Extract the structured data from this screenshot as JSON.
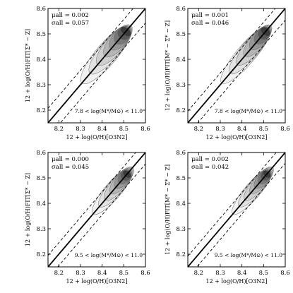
{
  "chart_data": [
    {
      "type": "contour",
      "xlabel": "12 + log(O/H)[O3N2]",
      "ylabel": "12 + log(O/H)FIT[Σ* − Z]",
      "xlim": [
        8.15,
        8.6
      ],
      "ylim": [
        8.15,
        8.6
      ],
      "xticks": [
        "8.2",
        "8.3",
        "8.4",
        "8.5",
        "8.6"
      ],
      "yticks": [
        "8.2",
        "8.3",
        "8.4",
        "8.5",
        "8.6"
      ],
      "stats": [
        "μall = 0.002",
        "σall = 0.057"
      ],
      "annotation": "7.8 < log(M*/M⊙) < 11.0",
      "dashed_offset": 0.057,
      "density": {
        "cx": 8.42,
        "cy": 8.42,
        "rotation_deg": 45,
        "sx": 0.16,
        "sy": 0.045,
        "peak": [
          8.53,
          8.53
        ]
      }
    },
    {
      "type": "contour",
      "xlabel": "12 + log(O/H)[O3N2]",
      "ylabel": "12 + log(O/H)FIT[M* − Σ* − Z]",
      "xlim": [
        8.15,
        8.6
      ],
      "ylim": [
        8.15,
        8.6
      ],
      "xticks": [
        "8.2",
        "8.3",
        "8.4",
        "8.5",
        "8.6"
      ],
      "yticks": [
        "8.2",
        "8.3",
        "8.4",
        "8.5",
        "8.6"
      ],
      "stats": [
        "μall = 0.001",
        "σall = 0.046"
      ],
      "annotation": "7.8 < log(M*/M⊙) < 11.0",
      "dashed_offset": 0.046,
      "density": {
        "cx": 8.42,
        "cy": 8.42,
        "rotation_deg": 45,
        "sx": 0.16,
        "sy": 0.04,
        "peak": [
          8.53,
          8.53
        ]
      }
    },
    {
      "type": "contour",
      "xlabel": "12 + log(O/H)[O3N2]",
      "ylabel": "12 + log(O/H)FIT[Σ* − Z]",
      "xlim": [
        8.15,
        8.6
      ],
      "ylim": [
        8.15,
        8.6
      ],
      "xticks": [
        "8.2",
        "8.3",
        "8.4",
        "8.5",
        "8.6"
      ],
      "yticks": [
        "8.2",
        "8.3",
        "8.4",
        "8.5",
        "8.6"
      ],
      "stats": [
        "μall = 0.000",
        "σall = 0.045"
      ],
      "annotation": "9.5 < log(M*/M⊙) < 11.0",
      "dashed_offset": 0.045,
      "density": {
        "cx": 8.45,
        "cy": 8.45,
        "rotation_deg": 45,
        "sx": 0.13,
        "sy": 0.035,
        "peak": [
          8.53,
          8.53
        ]
      }
    },
    {
      "type": "contour",
      "xlabel": "12 + log(O/H)[O3N2]",
      "ylabel": "12 + log(O/H)FIT[M* − Σ* − Z]",
      "xlim": [
        8.15,
        8.6
      ],
      "ylim": [
        8.15,
        8.6
      ],
      "xticks": [
        "8.2",
        "8.3",
        "8.4",
        "8.5",
        "8.6"
      ],
      "yticks": [
        "8.2",
        "8.3",
        "8.4",
        "8.5",
        "8.6"
      ],
      "stats": [
        "μall = 0.002",
        "σall = 0.042"
      ],
      "annotation": "9.5 < log(M*/M⊙) < 11.0",
      "dashed_offset": 0.042,
      "density": {
        "cx": 8.45,
        "cy": 8.45,
        "rotation_deg": 45,
        "sx": 0.13,
        "sy": 0.033,
        "peak": [
          8.53,
          8.53
        ]
      }
    }
  ]
}
